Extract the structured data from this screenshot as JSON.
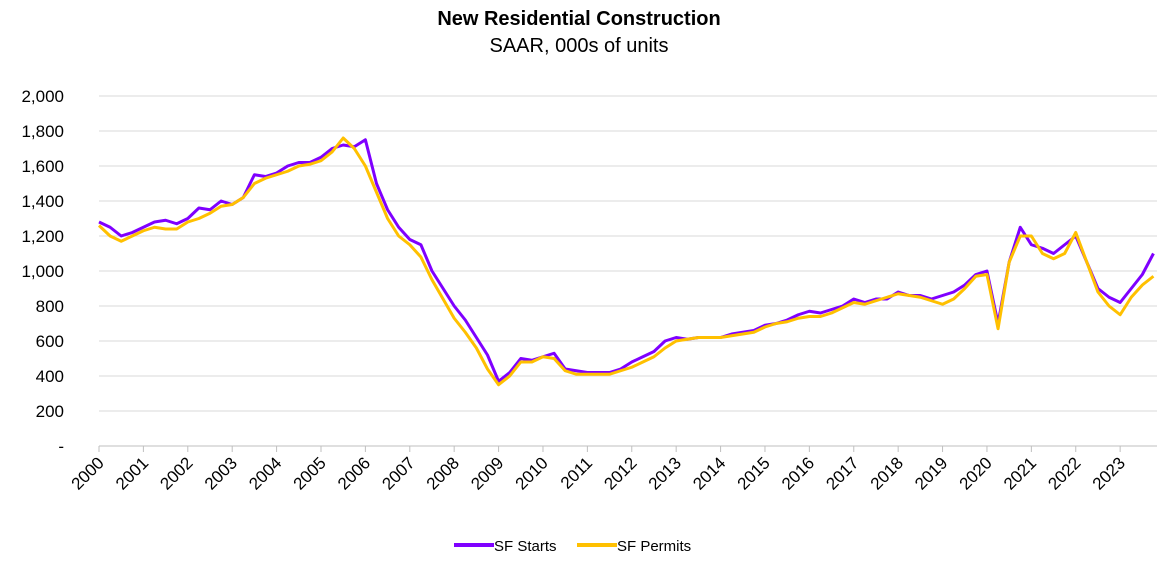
{
  "chart_data": {
    "type": "line",
    "title": "New Residential Construction",
    "subtitle": "SAAR, 000s of units",
    "x": [
      2000,
      2000.25,
      2000.5,
      2000.75,
      2001,
      2001.25,
      2001.5,
      2001.75,
      2002,
      2002.25,
      2002.5,
      2002.75,
      2003,
      2003.25,
      2003.5,
      2003.75,
      2004,
      2004.25,
      2004.5,
      2004.75,
      2005,
      2005.25,
      2005.5,
      2005.75,
      2006,
      2006.25,
      2006.5,
      2006.75,
      2007,
      2007.25,
      2007.5,
      2007.75,
      2008,
      2008.25,
      2008.5,
      2008.75,
      2009,
      2009.25,
      2009.5,
      2009.75,
      2010,
      2010.25,
      2010.5,
      2010.75,
      2011,
      2011.25,
      2011.5,
      2011.75,
      2012,
      2012.25,
      2012.5,
      2012.75,
      2013,
      2013.25,
      2013.5,
      2013.75,
      2014,
      2014.25,
      2014.5,
      2014.75,
      2015,
      2015.25,
      2015.5,
      2015.75,
      2016,
      2016.25,
      2016.5,
      2016.75,
      2017,
      2017.25,
      2017.5,
      2017.75,
      2018,
      2018.25,
      2018.5,
      2018.75,
      2019,
      2019.25,
      2019.5,
      2019.75,
      2020,
      2020.25,
      2020.5,
      2020.75,
      2021,
      2021.25,
      2021.5,
      2021.75,
      2022,
      2022.25,
      2022.5,
      2022.75,
      2023,
      2023.25,
      2023.5,
      2023.75
    ],
    "series": [
      {
        "name": "SF Starts",
        "color": "#7f00ff",
        "values": [
          1280,
          1250,
          1200,
          1220,
          1250,
          1280,
          1290,
          1270,
          1300,
          1360,
          1350,
          1400,
          1380,
          1420,
          1550,
          1540,
          1560,
          1600,
          1620,
          1620,
          1650,
          1700,
          1720,
          1710,
          1750,
          1500,
          1350,
          1250,
          1180,
          1150,
          1000,
          900,
          800,
          720,
          620,
          520,
          370,
          420,
          500,
          490,
          510,
          530,
          440,
          430,
          420,
          420,
          420,
          440,
          480,
          510,
          540,
          600,
          620,
          610,
          620,
          620,
          620,
          640,
          650,
          660,
          690,
          700,
          720,
          750,
          770,
          760,
          780,
          800,
          840,
          820,
          840,
          840,
          880,
          860,
          860,
          840,
          860,
          880,
          920,
          980,
          1000,
          700,
          1050,
          1250,
          1150,
          1130,
          1100,
          1150,
          1200,
          1050,
          900,
          850,
          820,
          900,
          980,
          1100
        ]
      },
      {
        "name": "SF Permits",
        "color": "#ffc000",
        "values": [
          1260,
          1200,
          1170,
          1200,
          1230,
          1250,
          1240,
          1240,
          1280,
          1300,
          1330,
          1370,
          1380,
          1420,
          1500,
          1530,
          1550,
          1570,
          1600,
          1610,
          1630,
          1680,
          1760,
          1700,
          1600,
          1450,
          1300,
          1200,
          1150,
          1080,
          950,
          840,
          730,
          650,
          560,
          440,
          350,
          400,
          480,
          480,
          510,
          500,
          430,
          410,
          410,
          410,
          410,
          430,
          450,
          480,
          510,
          560,
          600,
          610,
          620,
          620,
          620,
          630,
          640,
          650,
          680,
          700,
          710,
          730,
          740,
          740,
          760,
          790,
          820,
          810,
          830,
          850,
          870,
          860,
          850,
          830,
          810,
          840,
          900,
          970,
          980,
          670,
          1050,
          1200,
          1200,
          1100,
          1070,
          1100,
          1220,
          1050,
          880,
          800,
          750,
          850,
          920,
          970
        ]
      }
    ],
    "xlim": [
      2000,
      2023.83
    ],
    "xticks": [
      2000,
      2001,
      2002,
      2003,
      2004,
      2005,
      2006,
      2007,
      2008,
      2009,
      2010,
      2011,
      2012,
      2013,
      2014,
      2015,
      2016,
      2017,
      2018,
      2019,
      2020,
      2021,
      2022,
      2023
    ],
    "ylim": [
      0,
      2000
    ],
    "yticks": [
      {
        "value": 0,
        "label": "-"
      },
      200,
      400,
      600,
      800,
      {
        "value": 1000,
        "label": "1,000"
      },
      {
        "value": 1200,
        "label": "1,200"
      },
      {
        "value": 1400,
        "label": "1,400"
      },
      {
        "value": 1600,
        "label": "1,600"
      },
      {
        "value": 1800,
        "label": "1,800"
      },
      {
        "value": 2000,
        "label": "2,000"
      }
    ],
    "grid": true,
    "legend": "bottom"
  }
}
